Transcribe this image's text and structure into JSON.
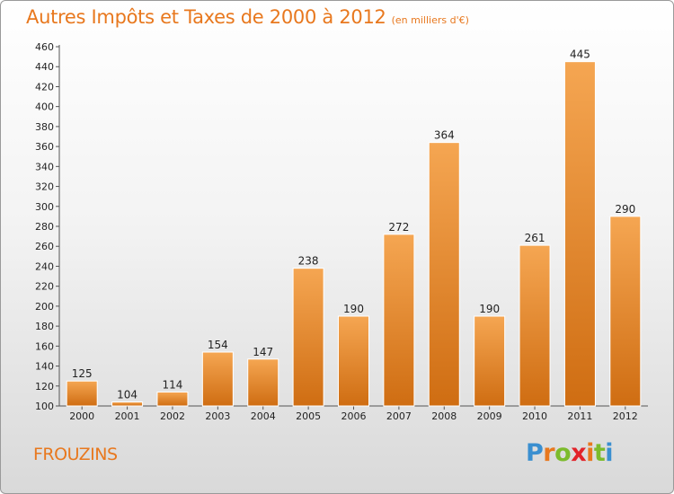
{
  "header": {
    "title": "Autres Impôts et Taxes de 2000 à 2012",
    "subtitle": "(en milliers d'€)"
  },
  "footer": {
    "commune": "FROUZINS",
    "logo_text": "Proxiti"
  },
  "colors": {
    "bar_top": "#f5a652",
    "bar_bottom": "#cf6d12",
    "title": "#e8781e"
  },
  "chart_data": {
    "type": "bar",
    "title": "Autres Impôts et Taxes de 2000 à 2012",
    "subtitle": "(en milliers d'€)",
    "categories": [
      "2000",
      "2001",
      "2002",
      "2003",
      "2004",
      "2005",
      "2006",
      "2007",
      "2008",
      "2009",
      "2010",
      "2011",
      "2012"
    ],
    "values": [
      125,
      104,
      114,
      154,
      147,
      238,
      190,
      272,
      364,
      190,
      261,
      445,
      290
    ],
    "ylim": [
      100,
      460
    ],
    "yticks": [
      100,
      120,
      140,
      160,
      180,
      200,
      220,
      240,
      260,
      280,
      300,
      320,
      340,
      360,
      380,
      400,
      420,
      440,
      460
    ],
    "grid": false,
    "legend": "none"
  }
}
